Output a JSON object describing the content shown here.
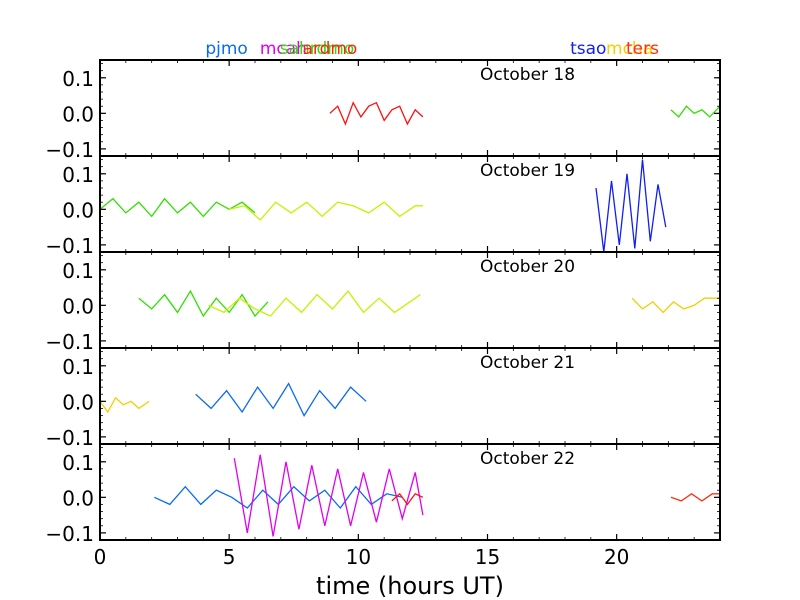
{
  "figure": {
    "xlabel": "time (hours UT)",
    "station_labels": [
      {
        "text": "pjmo",
        "x": 4.9,
        "color": "#0a6cf0"
      },
      {
        "text": "mcah",
        "x": 7.1,
        "color": "#e000f0"
      },
      {
        "text": "sahrdmo",
        "x": 8.4,
        "color": "#30e000"
      },
      {
        "text": "ardmo",
        "x": 8.9,
        "color": "#ff2020"
      },
      {
        "text": "tsao",
        "x": 18.9,
        "color": "#1020f0"
      },
      {
        "text": "mcha",
        "x": 20.5,
        "color": "#f0d000"
      },
      {
        "text": "ters",
        "x": 21.0,
        "color": "#ff3010"
      }
    ]
  },
  "chart_data": {
    "type": "line",
    "xlabel": "time (hours UT)",
    "ylabel": "",
    "xlim": [
      0,
      24
    ],
    "ylim": [
      -0.12,
      0.15
    ],
    "xticks": [
      "0",
      "5",
      "10",
      "15",
      "20"
    ],
    "xtick_values": [
      0,
      5,
      10,
      15,
      20
    ],
    "yticks": [
      "0.1",
      "0.0",
      "−0.1"
    ],
    "ytick_values": [
      0.1,
      0.0,
      -0.1
    ],
    "panels": [
      {
        "title": "October 18",
        "series": [
          {
            "station": "ardmo",
            "color": "#ff1010",
            "x": [
              8.9,
              9.2,
              9.5,
              9.8,
              10.1,
              10.4,
              10.7,
              11.0,
              11.3,
              11.6,
              11.9,
              12.2,
              12.5
            ],
            "y": [
              0.0,
              0.02,
              -0.03,
              0.03,
              -0.01,
              0.02,
              0.03,
              -0.02,
              0.01,
              0.02,
              -0.03,
              0.01,
              -0.01
            ]
          },
          {
            "station": "sahrdmo",
            "color": "#30e000",
            "x": [
              22.1,
              22.4,
              22.7,
              23.0,
              23.3,
              23.6,
              24.0
            ],
            "y": [
              0.01,
              -0.01,
              0.02,
              0.0,
              0.01,
              -0.01,
              0.02
            ]
          }
        ]
      },
      {
        "title": "October 19",
        "series": [
          {
            "station": "sahrdmo",
            "color": "#30e000",
            "x": [
              0.0,
              0.5,
              1.0,
              1.5,
              2.0,
              2.5,
              3.0,
              3.5,
              4.0,
              4.5,
              5.0,
              5.5,
              6.0
            ],
            "y": [
              0.0,
              0.03,
              -0.01,
              0.02,
              -0.02,
              0.03,
              -0.01,
              0.02,
              -0.02,
              0.02,
              0.0,
              0.02,
              -0.01
            ]
          },
          {
            "station": "ardmo",
            "color": "#c8f000",
            "x": [
              5.0,
              5.6,
              6.2,
              6.8,
              7.4,
              8.0,
              8.6,
              9.2,
              9.8,
              10.4,
              11.0,
              11.6,
              12.2,
              12.5
            ],
            "y": [
              0.0,
              0.01,
              -0.03,
              0.02,
              -0.01,
              0.02,
              -0.02,
              0.02,
              0.01,
              -0.01,
              0.02,
              -0.02,
              0.01,
              0.01
            ]
          },
          {
            "station": "tsao",
            "color": "#1020f0",
            "x": [
              19.2,
              19.5,
              19.8,
              20.1,
              20.4,
              20.7,
              21.0,
              21.3,
              21.6,
              21.9
            ],
            "y": [
              0.06,
              -0.12,
              0.08,
              -0.1,
              0.1,
              -0.11,
              0.14,
              -0.09,
              0.07,
              -0.05
            ]
          }
        ]
      },
      {
        "title": "October 20",
        "series": [
          {
            "station": "sahrdmo",
            "color": "#30e000",
            "x": [
              1.5,
              2.0,
              2.5,
              3.0,
              3.5,
              4.0,
              4.5,
              5.0,
              5.5,
              6.0,
              6.5
            ],
            "y": [
              0.02,
              -0.01,
              0.03,
              -0.02,
              0.04,
              -0.03,
              0.02,
              -0.02,
              0.03,
              -0.03,
              0.01
            ]
          },
          {
            "station": "ardmo",
            "color": "#c8f000",
            "x": [
              4.2,
              4.8,
              5.4,
              6.0,
              6.6,
              7.2,
              7.8,
              8.4,
              9.0,
              9.6,
              10.2,
              10.8,
              11.4,
              12.0,
              12.4
            ],
            "y": [
              0.0,
              -0.02,
              0.02,
              -0.01,
              -0.03,
              0.02,
              -0.02,
              0.03,
              -0.01,
              0.04,
              -0.02,
              0.02,
              -0.02,
              0.01,
              0.03
            ]
          },
          {
            "station": "mcha",
            "color": "#f0d000",
            "x": [
              20.6,
              21.0,
              21.4,
              21.8,
              22.2,
              22.6,
              23.0,
              23.4,
              24.0
            ],
            "y": [
              0.02,
              -0.01,
              0.01,
              -0.02,
              0.01,
              -0.01,
              0.0,
              0.02,
              0.02
            ]
          }
        ]
      },
      {
        "title": "October 21",
        "series": [
          {
            "station": "mcha",
            "color": "#f0d000",
            "x": [
              0.0,
              0.3,
              0.6,
              0.9,
              1.2,
              1.5,
              1.9
            ],
            "y": [
              0.0,
              -0.03,
              0.01,
              -0.01,
              0.0,
              -0.02,
              0.0
            ]
          },
          {
            "station": "pjmo",
            "color": "#0a6cf0",
            "x": [
              3.7,
              4.3,
              4.9,
              5.5,
              6.1,
              6.7,
              7.3,
              7.9,
              8.5,
              9.1,
              9.7,
              10.3
            ],
            "y": [
              0.02,
              -0.02,
              0.03,
              -0.03,
              0.04,
              -0.02,
              0.05,
              -0.04,
              0.03,
              -0.02,
              0.04,
              0.0
            ]
          }
        ]
      },
      {
        "title": "October 22",
        "series": [
          {
            "station": "pjmo",
            "color": "#0a6cf0",
            "x": [
              2.1,
              2.7,
              3.3,
              3.9,
              4.5,
              5.1,
              5.7,
              6.3,
              6.9,
              7.5,
              8.1,
              8.7,
              9.3,
              9.9,
              10.5,
              11.1,
              11.7
            ],
            "y": [
              0.0,
              -0.02,
              0.03,
              -0.02,
              0.02,
              0.0,
              -0.03,
              0.02,
              -0.02,
              0.03,
              -0.01,
              0.02,
              -0.03,
              0.03,
              -0.02,
              0.01,
              0.0
            ]
          },
          {
            "station": "mcah",
            "color": "#e000f0",
            "x": [
              5.2,
              5.7,
              6.2,
              6.7,
              7.2,
              7.7,
              8.2,
              8.7,
              9.2,
              9.7,
              10.2,
              10.7,
              11.2,
              11.7,
              12.2,
              12.5
            ],
            "y": [
              0.11,
              -0.1,
              0.12,
              -0.11,
              0.1,
              -0.09,
              0.09,
              -0.08,
              0.08,
              -0.08,
              0.07,
              -0.07,
              0.08,
              -0.06,
              0.07,
              -0.05
            ]
          },
          {
            "station": "ardmo",
            "color": "#ff1010",
            "x": [
              11.3,
              11.6,
              11.9,
              12.2,
              12.5
            ],
            "y": [
              -0.01,
              0.01,
              -0.02,
              0.01,
              0.0
            ]
          },
          {
            "station": "ters",
            "color": "#ff3010",
            "x": [
              22.1,
              22.5,
              22.9,
              23.3,
              23.7,
              24.0
            ],
            "y": [
              0.0,
              -0.01,
              0.01,
              -0.01,
              0.01,
              0.01
            ]
          }
        ]
      }
    ]
  }
}
